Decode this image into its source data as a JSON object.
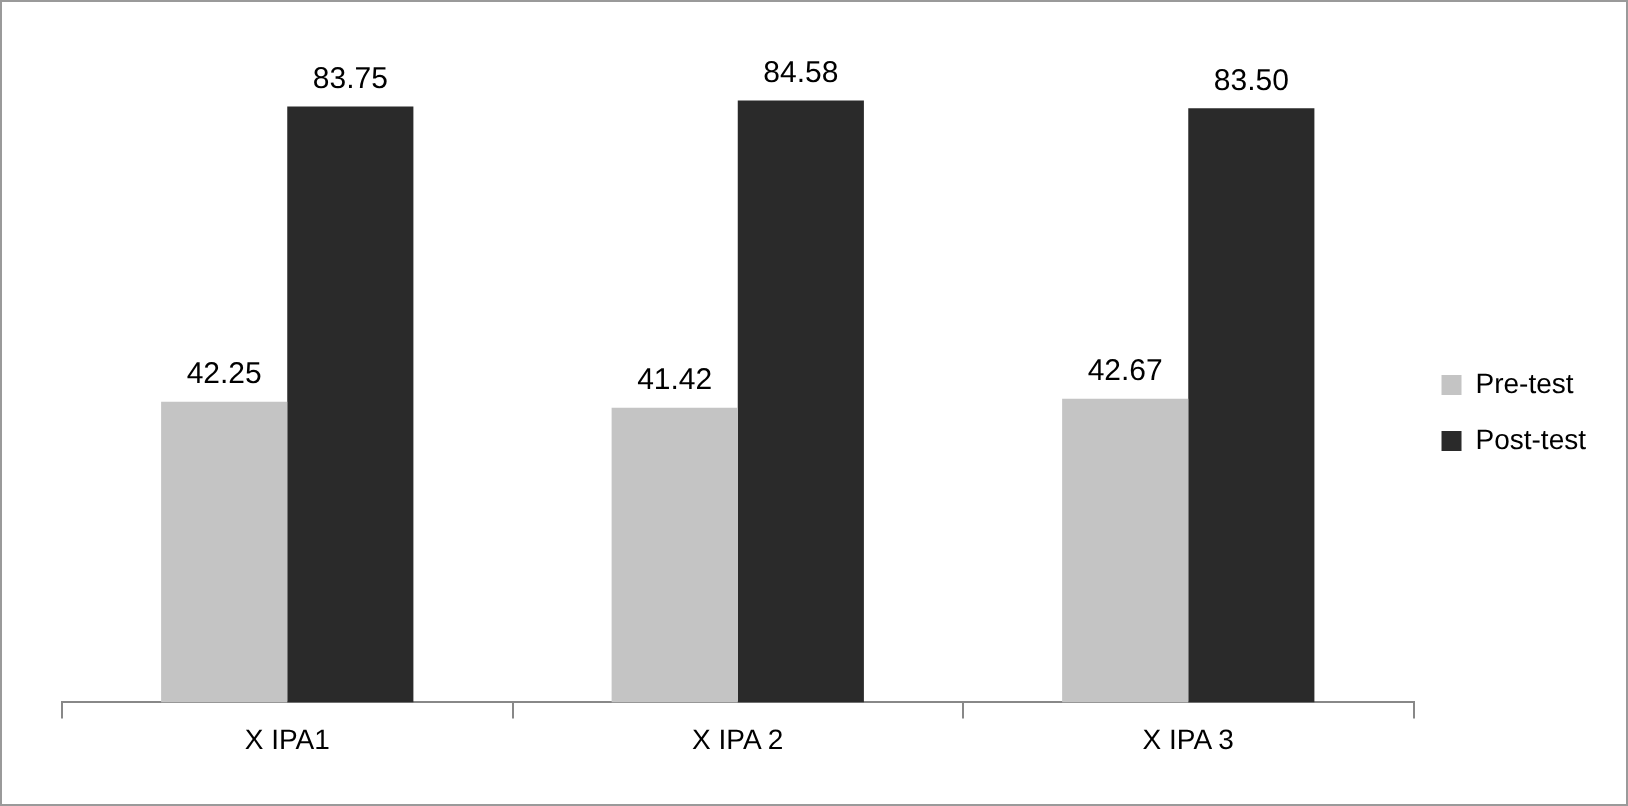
{
  "chart_data": {
    "type": "bar",
    "categories": [
      "X IPA1",
      "X IPA 2",
      "X IPA 3"
    ],
    "series": [
      {
        "name": "Pre-test",
        "color": "#c4c4c4",
        "values": [
          42.25,
          41.42,
          42.67
        ],
        "value_labels": [
          "42.25",
          "41.42",
          "42.67"
        ]
      },
      {
        "name": "Post-test",
        "color": "#2a2a2a",
        "values": [
          83.75,
          84.58,
          83.5
        ],
        "value_labels": [
          "83.75",
          "84.58",
          "83.50"
        ]
      }
    ],
    "legend": "right"
  }
}
